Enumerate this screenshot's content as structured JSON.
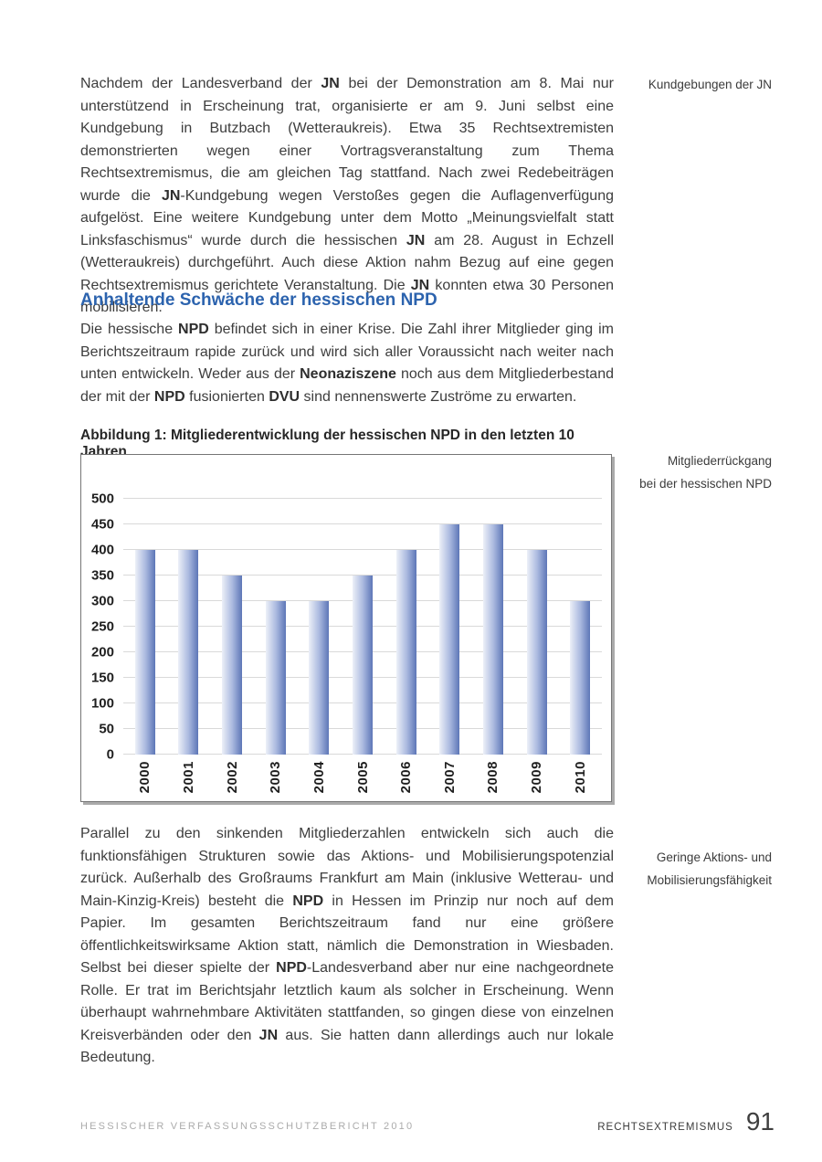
{
  "colors": {
    "accent_heading": "#2c63ae",
    "body_text": "#3d3d3d",
    "gridline": "#d9d9d9",
    "bar_gradient_left": "#edf0f8",
    "bar_gradient_mid": "#aab9df",
    "bar_gradient_right": "#5d76b7",
    "chart_border": "#767676",
    "chart_shadow": "#aaaaaa",
    "footer_gray": "#ababab"
  },
  "margin_notes": {
    "kundgebungen": "Kundgebungen der JN",
    "mitgliederrueckgang_line1": "Mitgliederrückgang",
    "mitgliederrueckgang_line2": "bei der hessischen NPD",
    "aktions_line1": "Geringe Aktions- und",
    "aktions_line2": "Mobilisierungsfähigkeit"
  },
  "content": {
    "para1": {
      "segments": [
        {
          "t": "Nachdem der Landesverband der "
        },
        {
          "t": "JN",
          "b": true
        },
        {
          "t": " bei der Demonstration am 8. Mai nur unterstützend in Erscheinung trat, organisierte er am 9. Juni selbst eine Kundgebung in Butzbach (Wetteraukreis). Etwa 35 Rechtsextremisten demonstrierten wegen einer Vortragsveranstaltung zum Thema Rechtsextremismus, die am gleichen Tag stattfand. Nach zwei Redebeiträgen wurde die "
        },
        {
          "t": "JN",
          "b": true
        },
        {
          "t": "-Kundgebung wegen Verstoßes gegen die Auflagenverfügung aufgelöst. Eine weitere Kundgebung unter dem Motto „Meinungsvielfalt statt Linksfaschismus“ wurde durch die hessischen "
        },
        {
          "t": "JN",
          "b": true
        },
        {
          "t": " am 28. August in Echzell (Wetteraukreis) durchgeführt. Auch diese Aktion nahm Bezug auf eine gegen Rechtsextremismus gerichtete Veranstaltung. Die "
        },
        {
          "t": "JN",
          "b": true
        },
        {
          "t": " konnten etwa 30 Personen mobilisieren."
        }
      ]
    },
    "section_heading": "Anhaltende Schwäche der hessischen NPD",
    "para2": {
      "segments": [
        {
          "t": "Die hessische "
        },
        {
          "t": "NPD",
          "b": true
        },
        {
          "t": " befindet sich in einer Krise. Die Zahl ihrer Mitglieder ging im Berichtszeitraum rapide zurück und wird sich aller Voraussicht nach weiter nach unten entwickeln. Weder aus der "
        },
        {
          "t": "Neonaziszene",
          "b": true
        },
        {
          "t": " noch aus dem Mitgliederbestand der mit der "
        },
        {
          "t": "NPD",
          "b": true
        },
        {
          "t": " fusionierten "
        },
        {
          "t": "DVU",
          "b": true
        },
        {
          "t": " sind nennenswerte Zuströme zu erwarten."
        }
      ]
    },
    "para3": {
      "segments": [
        {
          "t": "Parallel zu den sinkenden Mitgliederzahlen entwickeln sich auch die funktionsfähigen Strukturen sowie das Aktions- und Mobilisierungspotenzial zurück. Außerhalb des Großraums Frankfurt am Main (inklusive Wetterau- und Main-Kinzig-Kreis) besteht die "
        },
        {
          "t": "NPD",
          "b": true
        },
        {
          "t": " in Hessen im Prinzip nur noch auf dem Papier. Im gesamten Berichtszeitraum fand nur eine größere öffentlichkeitswirksame Aktion statt, nämlich die Demonstration in Wiesbaden. Selbst bei dieser spielte der "
        },
        {
          "t": "NPD",
          "b": true
        },
        {
          "t": "-Landesverband aber nur eine nachgeordnete Rolle. Er trat im Berichtsjahr letztlich kaum als solcher in Erscheinung. Wenn überhaupt wahrnehmbare Aktivitäten stattfanden, so gingen diese von einzelnen Kreisverbänden oder den "
        },
        {
          "t": "JN",
          "b": true
        },
        {
          "t": " aus. Sie hatten dann allerdings auch nur lokale Bedeutung."
        }
      ]
    }
  },
  "chart_data": {
    "type": "bar",
    "title": "Abbildung 1: Mitgliederentwicklung der hessischen NPD in den letzten 10 Jahren",
    "categories": [
      "2000",
      "2001",
      "2002",
      "2003",
      "2004",
      "2005",
      "2006",
      "2007",
      "2008",
      "2009",
      "2010"
    ],
    "values": [
      400,
      400,
      350,
      300,
      300,
      350,
      400,
      450,
      450,
      400,
      300
    ],
    "xlabel": "",
    "ylabel": "",
    "ylim": [
      0,
      500
    ],
    "ytick_step": 50,
    "grid": true,
    "legend": false,
    "x_tick_rotation_deg": 90
  },
  "footer": {
    "report_title": "HESSISCHER VERFASSUNGSSCHUTZBERICHT 2010",
    "chapter": "RECHTSEXTREMISMUS",
    "page_number": "91"
  }
}
